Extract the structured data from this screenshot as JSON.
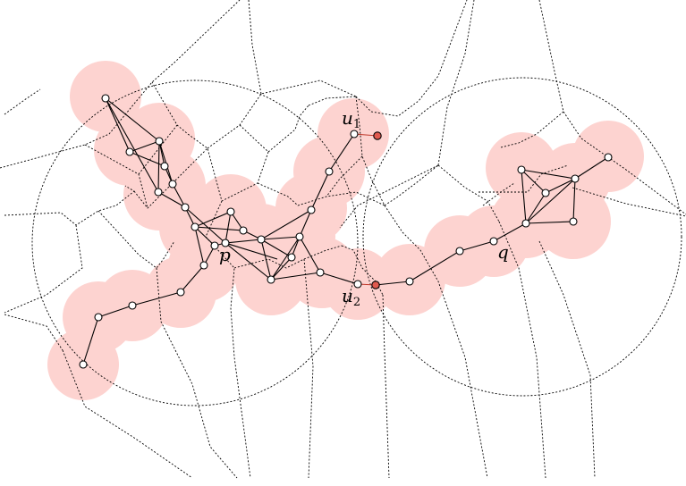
{
  "labels": {
    "u1_main": "u",
    "u1_sub": "1",
    "u2_main": "u",
    "u2_sub": "2",
    "p": "p",
    "q": "q"
  },
  "colors": {
    "disk": "#fdd3d0",
    "highlight_node": "#e05a4f",
    "highlight_edge": "#c0392b",
    "line": "#000000"
  }
}
